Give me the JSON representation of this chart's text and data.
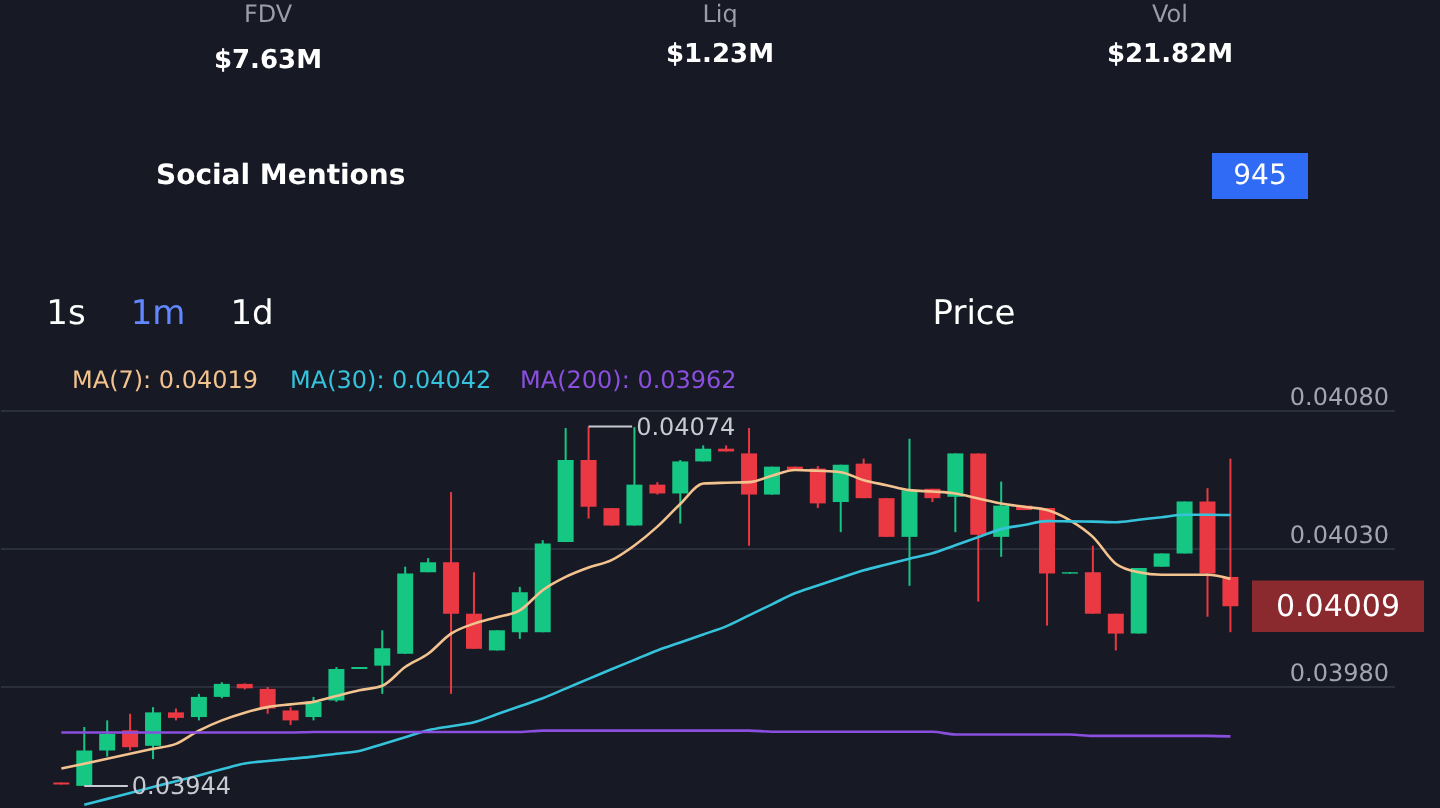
{
  "chart_data": {
    "type": "candlestick",
    "categories": [
      null,
      null,
      null,
      null,
      null,
      null,
      null,
      null,
      null,
      null,
      null,
      null,
      null,
      null,
      null,
      null,
      null,
      null,
      null,
      null,
      null,
      null,
      null,
      null,
      null,
      null,
      null,
      null,
      null,
      null,
      null,
      null,
      null,
      null,
      null,
      null,
      null,
      null,
      null,
      null,
      null,
      null,
      null,
      null,
      null,
      null,
      null,
      null,
      null,
      null,
      null,
      null
    ],
    "ohlc": [
      [
        0.039452,
        0.039452,
        0.039445,
        0.039445
      ],
      [
        0.03944,
        0.039653,
        0.03944,
        0.039568
      ],
      [
        0.039568,
        0.039677,
        0.039546,
        0.039628
      ],
      [
        0.039641,
        0.039701,
        0.039568,
        0.03958
      ],
      [
        0.039585,
        0.039725,
        0.039537,
        0.039706
      ],
      [
        0.039706,
        0.03972,
        0.039677,
        0.039686
      ],
      [
        0.039689,
        0.039773,
        0.039677,
        0.039762
      ],
      [
        0.039762,
        0.039815,
        0.039757,
        0.039809
      ],
      [
        0.039809,
        0.039811,
        0.039789,
        0.039793
      ],
      [
        0.039791,
        0.039798,
        0.039701,
        0.03972
      ],
      [
        0.039713,
        0.039725,
        0.03966,
        0.039677
      ],
      [
        0.039689,
        0.039762,
        0.039677,
        0.039744
      ],
      [
        0.039749,
        0.03987,
        0.039744,
        0.039863
      ],
      [
        0.039863,
        0.03987,
        0.039863,
        0.03987
      ],
      [
        0.039875,
        0.040003,
        0.039773,
        0.039938
      ],
      [
        0.039918,
        0.040233,
        0.039918,
        0.040208
      ],
      [
        0.040213,
        0.040264,
        0.040213,
        0.040249
      ],
      [
        0.040249,
        0.040503,
        0.039773,
        0.040063
      ],
      [
        0.040063,
        0.040213,
        0.039936,
        0.039936
      ],
      [
        0.03993,
        0.040003,
        0.03993,
        0.040003
      ],
      [
        0.039996,
        0.04016,
        0.039972,
        0.040141
      ],
      [
        0.039996,
        0.040329,
        0.039996,
        0.040317
      ],
      [
        0.040322,
        0.040735,
        0.040322,
        0.040619
      ],
      [
        0.040619,
        0.04074,
        0.040407,
        0.04045
      ],
      [
        0.040445,
        0.040445,
        0.040382,
        0.040382
      ],
      [
        0.040382,
        0.040738,
        0.040382,
        0.04053
      ],
      [
        0.04053,
        0.040539,
        0.040494,
        0.040498
      ],
      [
        0.040498,
        0.040619,
        0.040389,
        0.040614
      ],
      [
        0.040614,
        0.040672,
        0.040614,
        0.04066
      ],
      [
        0.04066,
        0.040672,
        0.04065,
        0.04065
      ],
      [
        0.040643,
        0.040735,
        0.040309,
        0.040494
      ],
      [
        0.040494,
        0.040595,
        0.040494,
        0.040595
      ],
      [
        0.040595,
        0.040595,
        0.04058,
        0.04058
      ],
      [
        0.040588,
        0.040597,
        0.040445,
        0.040462
      ],
      [
        0.040467,
        0.040602,
        0.040358,
        0.040602
      ],
      [
        0.040606,
        0.040624,
        0.040481,
        0.040481
      ],
      [
        0.040481,
        0.040481,
        0.040341,
        0.040341
      ],
      [
        0.040341,
        0.040696,
        0.040164,
        0.04051
      ],
      [
        0.040515,
        0.040515,
        0.040467,
        0.040481
      ],
      [
        0.040486,
        0.040643,
        0.040358,
        0.040643
      ],
      [
        0.040643,
        0.040643,
        0.040107,
        0.040349
      ],
      [
        0.040341,
        0.040541,
        0.040269,
        0.040454
      ],
      [
        0.040454,
        0.040454,
        0.040438,
        0.040438
      ],
      [
        0.040445,
        0.040445,
        0.04002,
        0.040208
      ],
      [
        0.040208,
        0.040213,
        0.040208,
        0.040213
      ],
      [
        0.040213,
        0.040309,
        0.040063,
        0.040063
      ],
      [
        0.040063,
        0.040063,
        0.03993,
        0.039991
      ],
      [
        0.039991,
        0.040228,
        0.039991,
        0.040228
      ],
      [
        0.040233,
        0.040281,
        0.040233,
        0.040281
      ],
      [
        0.040281,
        0.040469,
        0.040281,
        0.040469
      ],
      [
        0.040469,
        0.040517,
        0.040052,
        0.040208
      ],
      [
        0.040196,
        0.040624,
        0.039996,
        0.04009
      ]
    ],
    "colors": [
      "#ea3943",
      "#16c784",
      "#16c784",
      "#ea3943",
      "#16c784",
      "#ea3943",
      "#16c784",
      "#16c784",
      "#ea3943",
      "#ea3943",
      "#ea3943",
      "#16c784",
      "#16c784",
      "#16c784",
      "#16c784",
      "#16c784",
      "#16c784",
      "#ea3943",
      "#ea3943",
      "#16c784",
      "#16c784",
      "#16c784",
      "#16c784",
      "#ea3943",
      "#ea3943",
      "#16c784",
      "#ea3943",
      "#16c784",
      "#16c784",
      "#ea3943",
      "#ea3943",
      "#16c784",
      "#ea3943",
      "#ea3943",
      "#16c784",
      "#ea3943",
      "#ea3943",
      "#16c784",
      "#ea3943",
      "#16c784",
      "#ea3943",
      "#16c784",
      "#ea3943",
      "#ea3943",
      "#16c784",
      "#ea3943",
      "#ea3943",
      "#16c784",
      "#16c784",
      "#16c784",
      "#ea3943",
      "#ea3943"
    ],
    "series": [
      {
        "name": "MA(7): 0.04019",
        "type": "line",
        "color": "#f3c38f",
        "values": [
          0.039503,
          0.03952,
          0.039538,
          0.039556,
          0.039574,
          0.039592,
          0.03964,
          0.039677,
          0.039705,
          0.039725,
          0.039735,
          0.039744,
          0.039765,
          0.039786,
          0.039802,
          0.03987,
          0.039918,
          0.039991,
          0.040027,
          0.04005,
          0.040075,
          0.040148,
          0.040196,
          0.04023,
          0.040257,
          0.04031,
          0.040378,
          0.04046,
          0.040534,
          0.040537,
          0.040539,
          0.040562,
          0.040583,
          0.04058,
          0.040575,
          0.040546,
          0.040528,
          0.04051,
          0.040505,
          0.040498,
          0.04048,
          0.040462,
          0.04045,
          0.040438,
          0.040401,
          0.040341,
          0.040244,
          0.040213,
          0.040204,
          0.040204,
          0.040204,
          0.040189
        ]
      },
      {
        "name": "MA(30): 0.04042",
        "type": "line",
        "color": "#35c3dc",
        "values": [
          null,
          0.039372,
          0.039393,
          0.039414,
          0.039436,
          0.039457,
          0.039478,
          0.0395,
          0.039521,
          0.03953,
          0.039538,
          0.039546,
          0.039556,
          0.039566,
          0.039591,
          0.039616,
          0.039641,
          0.039656,
          0.03967,
          0.039699,
          0.039728,
          0.039757,
          0.039792,
          0.039827,
          0.039862,
          0.039896,
          0.03993,
          0.039959,
          0.039988,
          0.040017,
          0.040057,
          0.040097,
          0.040137,
          0.040165,
          0.040193,
          0.04022,
          0.040241,
          0.040262,
          0.040282,
          0.040311,
          0.04034,
          0.040369,
          0.040384,
          0.040398,
          0.040397,
          0.040396,
          0.040394,
          0.040403,
          0.040412,
          0.040421,
          0.040421,
          0.04042
        ]
      },
      {
        "name": "MA(200): 0.03962",
        "type": "line",
        "color": "#8b4fe0",
        "values": [
          0.039633,
          0.039633,
          0.039633,
          0.039633,
          0.039633,
          0.039633,
          0.039633,
          0.039633,
          0.039633,
          0.039633,
          0.039633,
          0.039635,
          0.039635,
          0.039635,
          0.039635,
          0.039635,
          0.039635,
          0.039635,
          0.039635,
          0.039635,
          0.039635,
          0.03964,
          0.03964,
          0.03964,
          0.03964,
          0.03964,
          0.03964,
          0.03964,
          0.03964,
          0.03964,
          0.03964,
          0.039636,
          0.039636,
          0.039636,
          0.039636,
          0.039636,
          0.039636,
          0.039636,
          0.039636,
          0.039626,
          0.039626,
          0.039626,
          0.039626,
          0.039626,
          0.039626,
          0.039621,
          0.039621,
          0.039621,
          0.039621,
          0.039621,
          0.039621,
          0.039619
        ]
      }
    ],
    "ylim": [
      0.03936,
      0.0408
    ],
    "yticks": [
      {
        "value": 0.0398,
        "label": "0.03980"
      },
      {
        "value": 0.0403,
        "label": "0.04030"
      },
      {
        "value": 0.0408,
        "label": "0.04080"
      }
    ],
    "grid": "y",
    "legend": "top left",
    "tick_labels": "y",
    "annotations": [
      "0.04074",
      "0.03944",
      "0.04009",
      "FDV",
      "$7.63M",
      "Liq",
      "$1.23M",
      "Vol",
      "$21.82M",
      "Social Mentions",
      "945",
      "1s",
      "1m",
      "1d",
      "Price"
    ]
  }
}
